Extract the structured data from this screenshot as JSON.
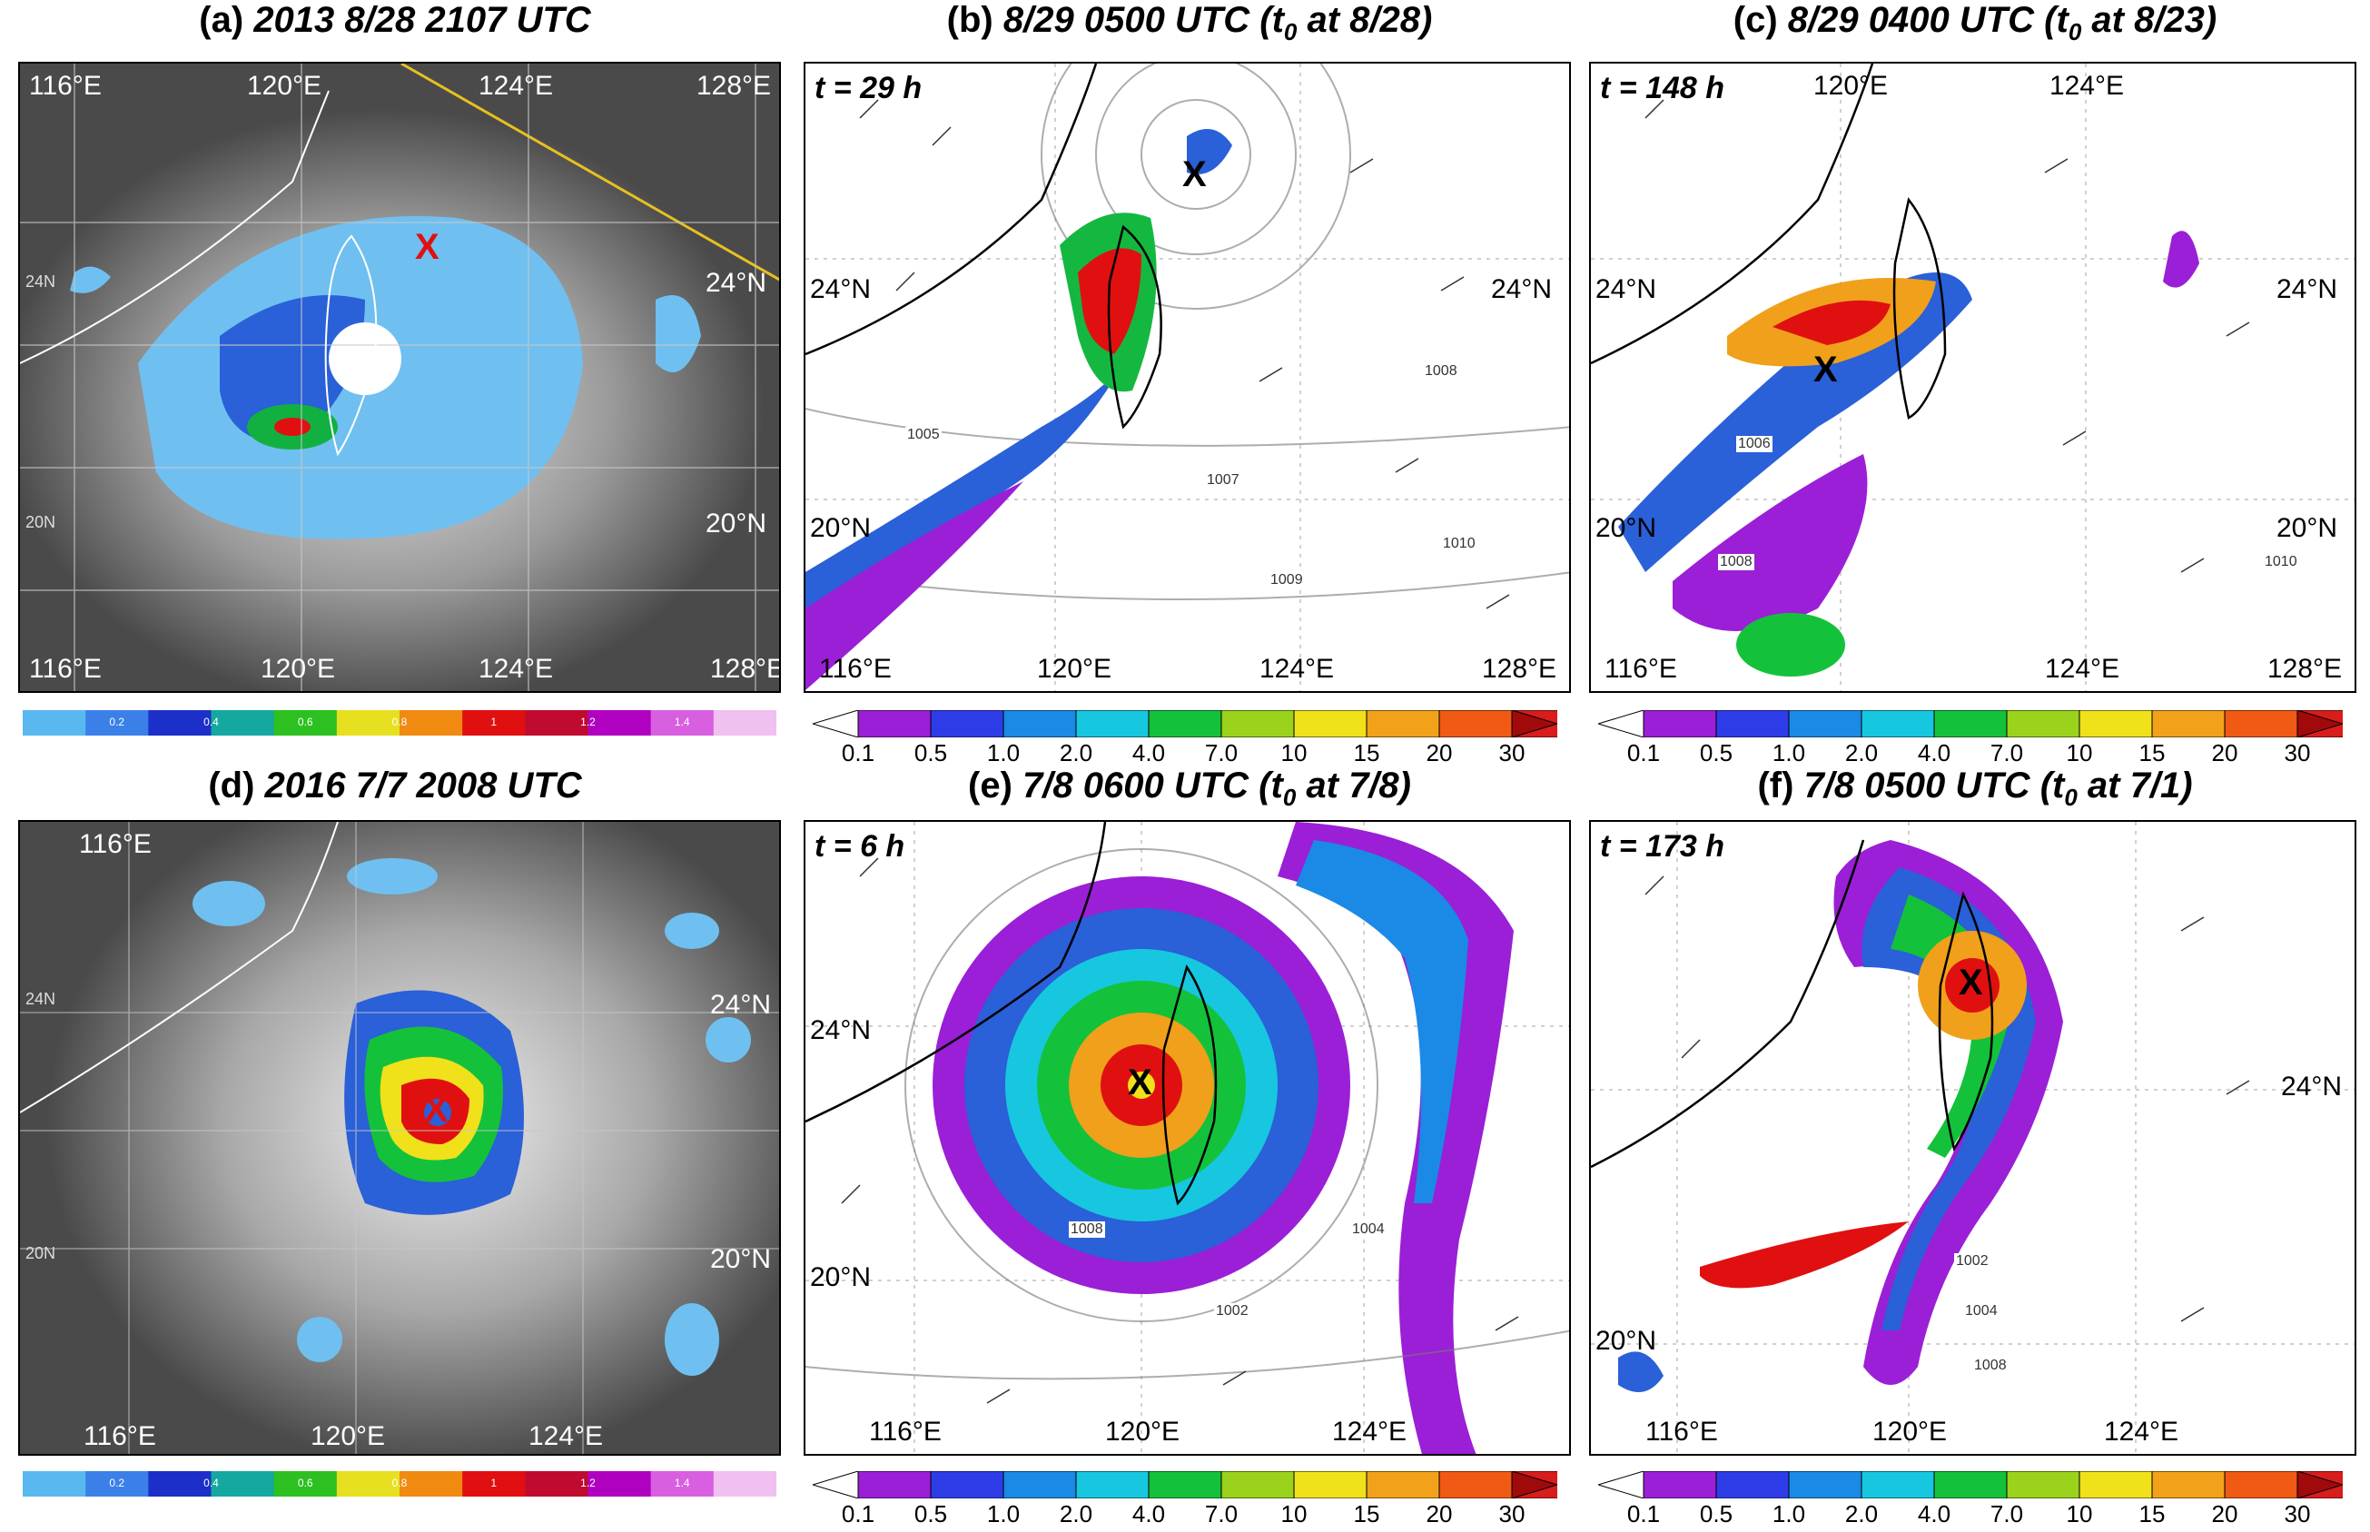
{
  "panels": {
    "a": {
      "letter": "(a)",
      "date": "2013 8/28 2107 UTC",
      "lon_top": [
        "116°E",
        "120°E",
        "124°E",
        "128°E"
      ],
      "lon_bottom": [
        "116°E",
        "120°E",
        "124°E",
        "128°E"
      ],
      "lat_right": [
        "24°N",
        "20°N"
      ],
      "lat_left_small": [
        "24N",
        "20N"
      ],
      "marker": "X"
    },
    "b": {
      "letter": "(b)",
      "date": "8/29 0500 UTC",
      "t0_pre": "(t",
      "t0_sub": "0",
      "t0_post": " at 8/28)",
      "time": "t = 29 h",
      "lon_bottom": [
        "116°E",
        "120°E",
        "124°E",
        "128°E"
      ],
      "lat_left": [
        "24°N",
        "20°N"
      ],
      "lat_right": [
        "24°N"
      ],
      "marker": "X"
    },
    "c": {
      "letter": "(c)",
      "date": "8/29 0400 UTC",
      "t0_pre": "(t",
      "t0_sub": "0",
      "t0_post": " at 8/23)",
      "time": "t = 148 h",
      "lon_top": [
        "120°E",
        "124°E"
      ],
      "lon_bottom": [
        "116°E",
        "124°E",
        "128°E"
      ],
      "lat_left": [
        "24°N",
        "20°N"
      ],
      "lat_right": [
        "24°N",
        "20°N"
      ],
      "marker": "X"
    },
    "d": {
      "letter": "(d)",
      "date": "2016 7/7 2008 UTC",
      "lon_top": [
        "116°E"
      ],
      "lon_bottom": [
        "116°E",
        "120°E",
        "124°E"
      ],
      "lat_right": [
        "24°N",
        "20°N"
      ],
      "lat_left_small": [
        "24N",
        "20N"
      ],
      "marker": "X"
    },
    "e": {
      "letter": "(e)",
      "date": "7/8 0600 UTC",
      "t0_pre": "(t",
      "t0_sub": "0",
      "t0_post": " at 7/8)",
      "time": "t = 6 h",
      "lon_bottom": [
        "116°E",
        "120°E",
        "124°E"
      ],
      "lat_left": [
        "24°N",
        "20°N"
      ],
      "marker": "X"
    },
    "f": {
      "letter": "(f)",
      "date": "7/8 0500 UTC",
      "t0_pre": "(t",
      "t0_sub": "0",
      "t0_post": " at 7/1)",
      "time": "t = 173 h",
      "lon_bottom": [
        "116°E",
        "120°E",
        "124°E"
      ],
      "lat_left": [
        "20°N"
      ],
      "lat_right": [
        "24°N"
      ],
      "marker": "X"
    }
  },
  "pressure_labels": {
    "b": [
      "1005",
      "1007",
      "1009",
      "1010",
      "1008"
    ],
    "c": [
      "1006",
      "1008",
      "1010"
    ],
    "e": [
      "1008",
      "1002",
      "1004"
    ],
    "f": [
      "1002",
      "1004",
      "1008"
    ]
  },
  "rain_colorbar": {
    "ticks": [
      "0.1",
      "0.5",
      "1.0",
      "2.0",
      "4.0",
      "7.0",
      "10",
      "15",
      "20",
      "30"
    ],
    "colors": [
      "#9b1fd6",
      "#2e3ce8",
      "#1a8ae6",
      "#17c7e0",
      "#13c23a",
      "#9bd21c",
      "#f0e11a",
      "#f2a11a",
      "#f05a14",
      "#d91c1c",
      "#a10a0a"
    ]
  },
  "sat_colorbar": {
    "ticks": [
      "0.2",
      "0.4",
      "0.6",
      "0.8",
      "1",
      "1.2",
      "1.4"
    ],
    "colors": [
      "#5ab8f0",
      "#3a80e8",
      "#1c2fc8",
      "#14a8a0",
      "#2cc020",
      "#e6e020",
      "#f08a10",
      "#e01010",
      "#c00a30",
      "#b000c0",
      "#d860e0",
      "#f0c0f0"
    ]
  }
}
